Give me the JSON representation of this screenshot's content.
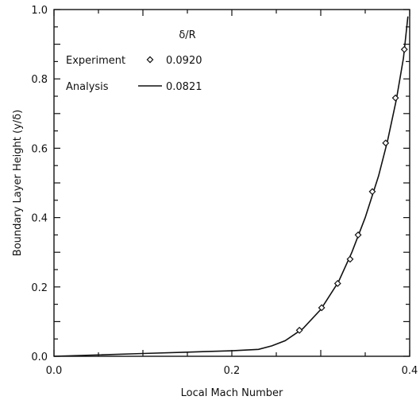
{
  "chart_data": {
    "type": "scatter",
    "title": "",
    "xlabel": "Local Mach Number",
    "ylabel": "Boundary Layer Height (y/δ)",
    "xlim": [
      0.0,
      0.4
    ],
    "ylim": [
      0.0,
      1.0
    ],
    "x_ticks": [
      0.0,
      0.2,
      0.4
    ],
    "x_tick_labels": [
      "0.0",
      "0.2",
      "0.4"
    ],
    "y_ticks": [
      0.0,
      0.2,
      0.4,
      0.6,
      0.8,
      1.0
    ],
    "y_tick_labels": [
      "0.0",
      "0.2",
      "0.4",
      "0.6",
      "0.8",
      "1.0"
    ],
    "grid": false,
    "legend": {
      "placement": "top-left",
      "title": "δ/R",
      "entries": [
        {
          "label": "Experiment",
          "marker": "diamond",
          "value": "0.0920"
        },
        {
          "label": "Analysis",
          "marker": "line",
          "value": "0.0821"
        }
      ]
    },
    "series": [
      {
        "name": "Experiment",
        "kind": "scatter",
        "marker": "diamond",
        "points": [
          [
            0.276,
            0.075
          ],
          [
            0.301,
            0.14
          ],
          [
            0.319,
            0.21
          ],
          [
            0.333,
            0.28
          ],
          [
            0.342,
            0.35
          ],
          [
            0.358,
            0.475
          ],
          [
            0.373,
            0.615
          ],
          [
            0.384,
            0.745
          ],
          [
            0.394,
            0.885
          ]
        ]
      },
      {
        "name": "Analysis",
        "kind": "line",
        "points": [
          [
            0.0,
            0.0
          ],
          [
            0.05,
            0.004
          ],
          [
            0.1,
            0.008
          ],
          [
            0.15,
            0.012
          ],
          [
            0.2,
            0.016
          ],
          [
            0.23,
            0.02
          ],
          [
            0.245,
            0.03
          ],
          [
            0.26,
            0.045
          ],
          [
            0.28,
            0.08
          ],
          [
            0.3,
            0.135
          ],
          [
            0.32,
            0.215
          ],
          [
            0.335,
            0.3
          ],
          [
            0.35,
            0.4
          ],
          [
            0.365,
            0.52
          ],
          [
            0.375,
            0.62
          ],
          [
            0.385,
            0.74
          ],
          [
            0.393,
            0.86
          ],
          [
            0.398,
            0.98
          ]
        ]
      }
    ]
  },
  "colors": {
    "axis": "#111111",
    "line": "#111111",
    "background": "#ffffff"
  }
}
